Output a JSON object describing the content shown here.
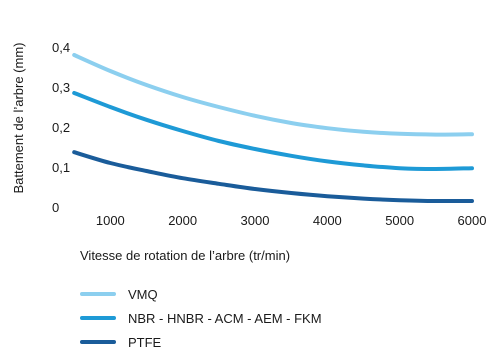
{
  "chart_data": {
    "type": "line",
    "title": "",
    "xlabel": "Vitesse de rotation de l’arbre (tr/min)",
    "ylabel": "Battement de l’arbre (mm)",
    "xlim": [
      0,
      6000
    ],
    "ylim": [
      0,
      0.4
    ],
    "xticks": [
      1000,
      2000,
      3000,
      4000,
      5000,
      6000
    ],
    "xtick_labels": [
      "1000",
      "2000",
      "3000",
      "4000",
      "5000",
      "6000"
    ],
    "yticks": [
      0,
      0.1,
      0.2,
      0.3,
      0.4
    ],
    "ytick_labels": [
      "0",
      "0,1",
      "0,2",
      "0,3",
      "0,4"
    ],
    "grid": false,
    "legend_position": "bottom-left",
    "series": [
      {
        "name": "VMQ",
        "color": "#8ccfef",
        "x": [
          500,
          1000,
          1500,
          2000,
          2500,
          3000,
          3500,
          4000,
          4500,
          5000,
          5500,
          6000
        ],
        "y": [
          0.38,
          0.34,
          0.305,
          0.275,
          0.25,
          0.228,
          0.21,
          0.197,
          0.188,
          0.183,
          0.181,
          0.182
        ]
      },
      {
        "name": "NBR - HNBR - ACM - AEM - FKM",
        "color": "#1e9ad6",
        "x": [
          500,
          1000,
          1500,
          2000,
          2500,
          3000,
          3500,
          4000,
          4500,
          5000,
          5500,
          6000
        ],
        "y": [
          0.285,
          0.25,
          0.218,
          0.19,
          0.165,
          0.145,
          0.128,
          0.114,
          0.104,
          0.097,
          0.095,
          0.097
        ]
      },
      {
        "name": "PTFE",
        "color": "#1a5c9a",
        "x": [
          500,
          1000,
          1500,
          2000,
          2500,
          3000,
          3500,
          4000,
          4500,
          5000,
          5500,
          6000
        ],
        "y": [
          0.137,
          0.11,
          0.09,
          0.072,
          0.058,
          0.045,
          0.035,
          0.027,
          0.021,
          0.017,
          0.015,
          0.015
        ]
      }
    ]
  }
}
